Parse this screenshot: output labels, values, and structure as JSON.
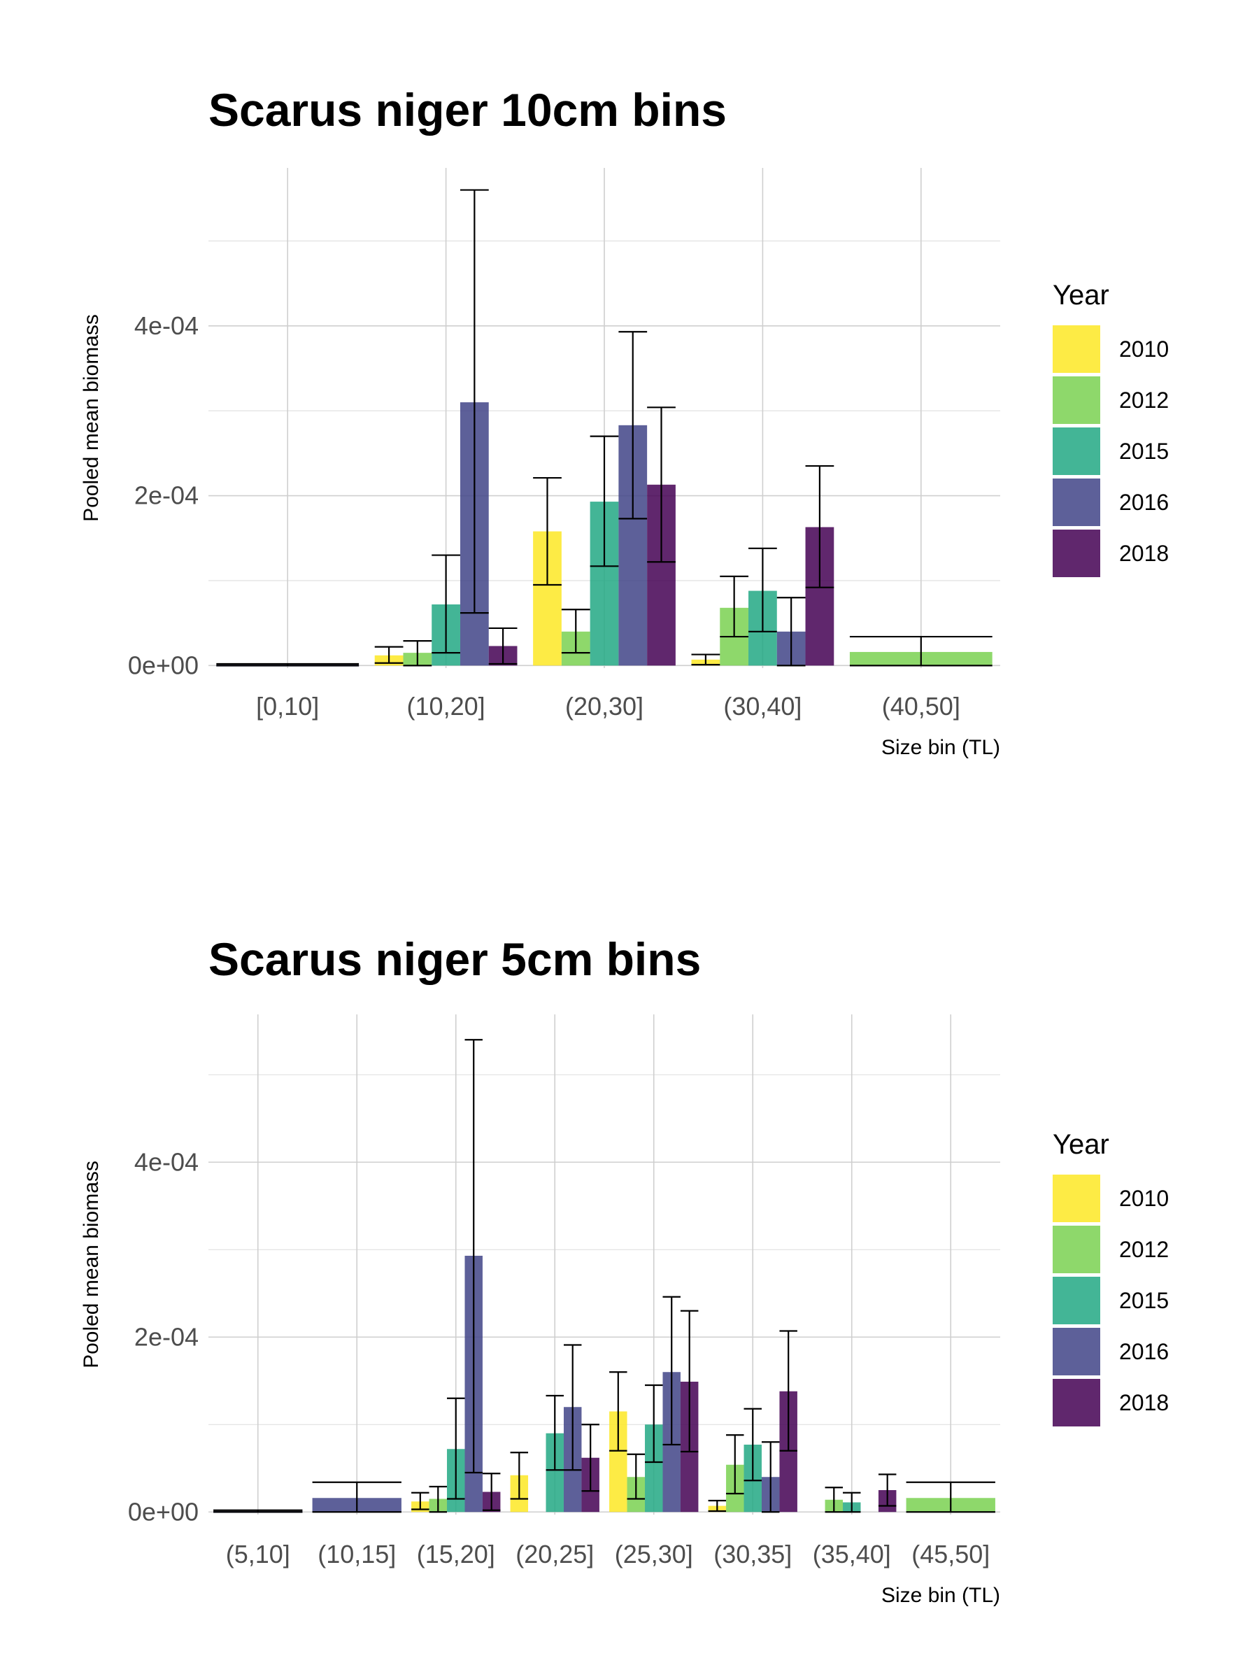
{
  "chart_data": [
    {
      "type": "bar",
      "title": "Scarus niger 10cm bins",
      "xlabel": "Size bin (TL)",
      "ylabel": "Pooled mean biomass",
      "ylim": [
        -3e-06,
        0.000586
      ],
      "yticks": [
        0,
        0.0002,
        0.0004
      ],
      "ytick_labels": [
        "0e+00",
        "2e-04",
        "4e-04"
      ],
      "grid": true,
      "legend": {
        "title": "Year",
        "position": "right"
      },
      "categories": [
        "[0,10]",
        "(10,20]",
        "(20,30]",
        "(30,40]",
        "(40,50]"
      ],
      "series": [
        {
          "name": "2010",
          "color": "#FDE725",
          "values": [
            null,
            1.2e-05,
            0.000158,
            7e-06,
            null
          ],
          "error_low": [
            null,
            3e-06,
            9.5e-05,
            1e-06,
            null
          ],
          "error_high": [
            null,
            2.2e-05,
            0.000221,
            1.3e-05,
            null
          ]
        },
        {
          "name": "2012",
          "color": "#7AD151",
          "values": [
            null,
            1.5e-05,
            4e-05,
            6.8e-05,
            1.6e-05
          ],
          "error_low": [
            null,
            0.0,
            1.5e-05,
            3.4e-05,
            0.0
          ],
          "error_high": [
            null,
            2.9e-05,
            6.6e-05,
            0.000105,
            3.4e-05
          ]
        },
        {
          "name": "2015",
          "color": "#22A884",
          "values": [
            null,
            7.2e-05,
            0.000193,
            8.8e-05,
            null
          ],
          "error_low": [
            null,
            1.5e-05,
            0.000117,
            4e-05,
            null
          ],
          "error_high": [
            null,
            0.00013,
            0.00027,
            0.000138,
            null
          ]
        },
        {
          "name": "2016",
          "color": "#414487",
          "values": [
            1e-06,
            0.00031,
            0.000283,
            4e-05,
            null
          ],
          "error_low": [
            0.0,
            6.2e-05,
            0.000173,
            0.0,
            null
          ],
          "error_high": [
            2e-06,
            0.00056,
            0.000393,
            8e-05,
            null
          ]
        },
        {
          "name": "2018",
          "color": "#440154",
          "values": [
            null,
            2.3e-05,
            0.000213,
            0.000163,
            null
          ],
          "error_low": [
            null,
            2e-06,
            0.000122,
            9.2e-05,
            null
          ],
          "error_high": [
            null,
            4.4e-05,
            0.000304,
            0.000235,
            null
          ]
        }
      ]
    },
    {
      "type": "bar",
      "title": "Scarus niger 5cm bins",
      "xlabel": "Size bin (TL)",
      "ylabel": "Pooled mean biomass",
      "ylim": [
        -3e-06,
        0.000569
      ],
      "yticks": [
        0,
        0.0002,
        0.0004
      ],
      "ytick_labels": [
        "0e+00",
        "2e-04",
        "4e-04"
      ],
      "grid": true,
      "legend": {
        "title": "Year",
        "position": "right"
      },
      "categories": [
        "(5,10]",
        "(10,15]",
        "(15,20]",
        "(20,25]",
        "(25,30]",
        "(30,35]",
        "(35,40]",
        "(45,50]"
      ],
      "series": [
        {
          "name": "2010",
          "color": "#FDE725",
          "values": [
            null,
            null,
            1.2e-05,
            4.2e-05,
            0.000115,
            7e-06,
            null,
            null
          ],
          "error_low": [
            null,
            null,
            3e-06,
            1.5e-05,
            7e-05,
            1e-06,
            null,
            null
          ],
          "error_high": [
            null,
            null,
            2.2e-05,
            6.8e-05,
            0.00016,
            1.3e-05,
            null,
            null
          ]
        },
        {
          "name": "2012",
          "color": "#7AD151",
          "values": [
            null,
            null,
            1.5e-05,
            null,
            4e-05,
            5.4e-05,
            1.4e-05,
            1.6e-05
          ],
          "error_low": [
            null,
            null,
            0.0,
            null,
            1.5e-05,
            2.1e-05,
            0.0,
            0.0
          ],
          "error_high": [
            null,
            null,
            2.9e-05,
            null,
            6.6e-05,
            8.8e-05,
            2.8e-05,
            3.4e-05
          ]
        },
        {
          "name": "2015",
          "color": "#22A884",
          "values": [
            null,
            null,
            7.2e-05,
            9e-05,
            0.0001,
            7.7e-05,
            1.1e-05,
            null
          ],
          "error_low": [
            null,
            null,
            1.5e-05,
            4.8e-05,
            5.7e-05,
            3.6e-05,
            0.0,
            null
          ],
          "error_high": [
            null,
            null,
            0.00013,
            0.000133,
            0.000145,
            0.000118,
            2.2e-05,
            null
          ]
        },
        {
          "name": "2016",
          "color": "#414487",
          "values": [
            1e-06,
            1.6e-05,
            0.000293,
            0.00012,
            0.00016,
            4e-05,
            null,
            null
          ],
          "error_low": [
            0.0,
            0.0,
            4.5e-05,
            4.8e-05,
            7.7e-05,
            0.0,
            null,
            null
          ],
          "error_high": [
            2e-06,
            3.4e-05,
            0.00054,
            0.000191,
            0.000246,
            8e-05,
            null,
            null
          ]
        },
        {
          "name": "2018",
          "color": "#440154",
          "values": [
            null,
            null,
            2.3e-05,
            6.2e-05,
            0.000149,
            0.000138,
            2.5e-05,
            null
          ],
          "error_low": [
            null,
            null,
            2e-06,
            2.4e-05,
            6.9e-05,
            7e-05,
            7e-06,
            null
          ],
          "error_high": [
            null,
            null,
            4.4e-05,
            0.0001,
            0.00023,
            0.000207,
            4.3e-05,
            null
          ]
        }
      ]
    }
  ]
}
